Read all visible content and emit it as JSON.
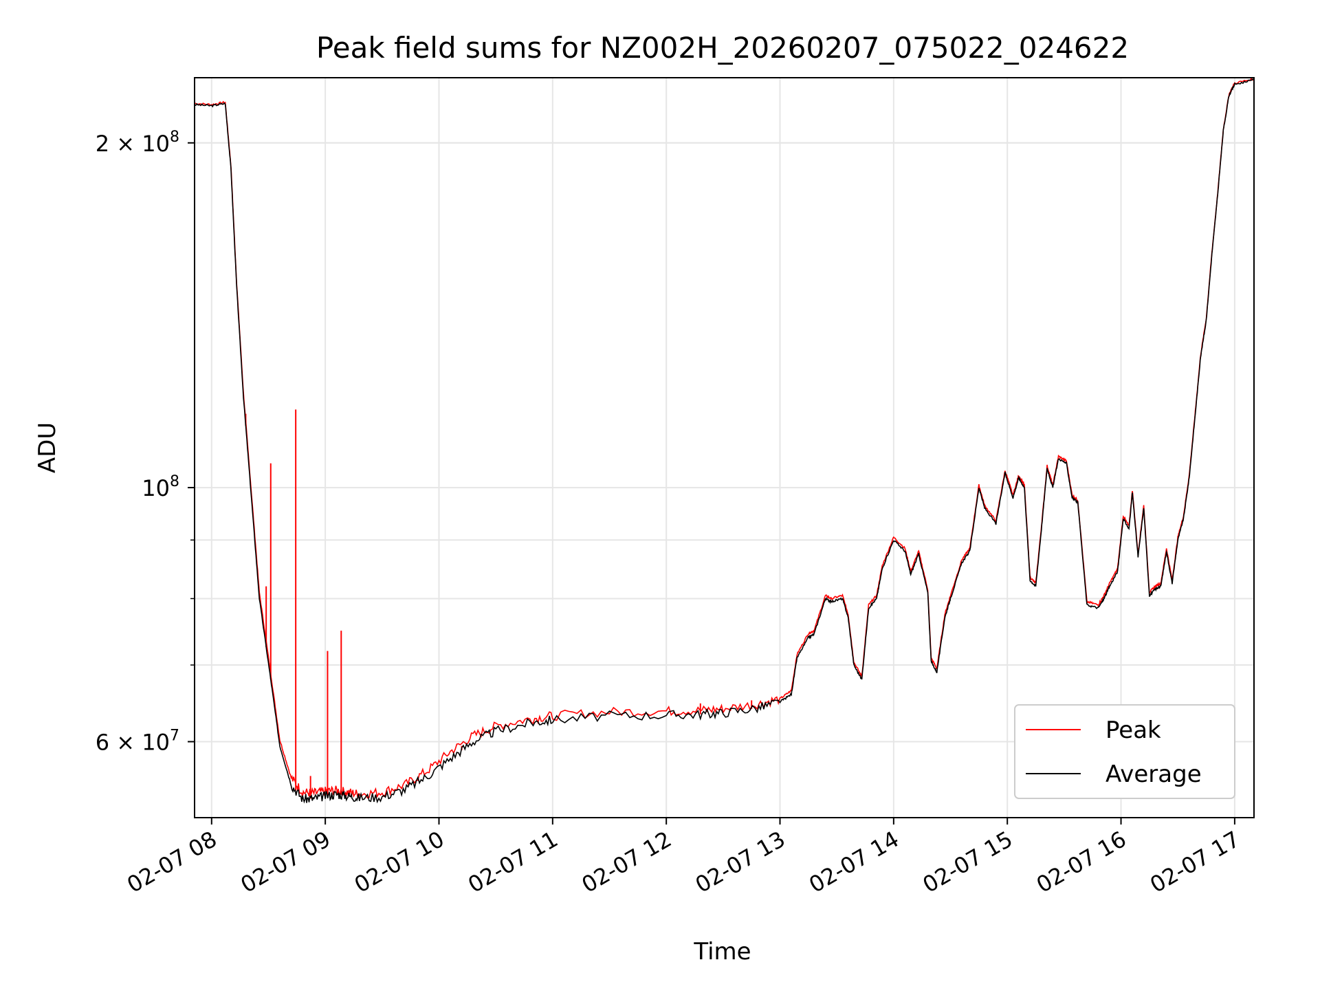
{
  "chart_data": {
    "type": "line",
    "title": "Peak field sums for NZ002H_20260207_075022_024622",
    "xlabel": "Time",
    "ylabel": "ADU",
    "yscale": "log",
    "ylim": [
      51500000,
      228000000
    ],
    "xlim_hours": [
      7.85,
      17.17
    ],
    "grid": true,
    "legend_position": "lower-right",
    "x_tick_labels": [
      "02-07 08",
      "02-07 09",
      "02-07 10",
      "02-07 11",
      "02-07 12",
      "02-07 13",
      "02-07 14",
      "02-07 15",
      "02-07 16",
      "02-07 17"
    ],
    "x_tick_hours": [
      8,
      9,
      10,
      11,
      12,
      13,
      14,
      15,
      16,
      17
    ],
    "y_major_ticks": [
      {
        "value": 200000000,
        "mantissa": "2",
        "exponent": "8"
      },
      {
        "value": 100000000,
        "mantissa": "",
        "exponent": "8"
      },
      {
        "value": 60000000,
        "mantissa": "6",
        "exponent": "7"
      }
    ],
    "y_minor_values": [
      70000000,
      80000000,
      90000000,
      200000000
    ],
    "colors": {
      "peak": "#ff0000",
      "average": "#000000",
      "grid": "#e6e6e6"
    },
    "series": [
      {
        "name": "Average",
        "color": "#000000",
        "x_hours": [
          7.85,
          8.0,
          8.12,
          8.17,
          8.22,
          8.28,
          8.35,
          8.42,
          8.52,
          8.6,
          8.7,
          8.8,
          8.9,
          9.0,
          9.1,
          9.2,
          9.3,
          9.5,
          9.7,
          9.9,
          10.1,
          10.3,
          10.5,
          10.8,
          11.0,
          11.5,
          12.0,
          12.3,
          12.5,
          12.8,
          13.0,
          13.1,
          13.15,
          13.25,
          13.3,
          13.4,
          13.45,
          13.55,
          13.6,
          13.65,
          13.72,
          13.78,
          13.85,
          13.9,
          14.0,
          14.1,
          14.15,
          14.22,
          14.3,
          14.33,
          14.38,
          14.45,
          14.5,
          14.6,
          14.67,
          14.75,
          14.8,
          14.9,
          14.98,
          15.05,
          15.1,
          15.15,
          15.2,
          15.25,
          15.3,
          15.35,
          15.4,
          15.45,
          15.52,
          15.57,
          15.62,
          15.7,
          15.8,
          15.85,
          15.9,
          15.97,
          16.02,
          16.07,
          16.1,
          16.15,
          16.2,
          16.25,
          16.3,
          16.35,
          16.4,
          16.45,
          16.5,
          16.55,
          16.6,
          16.65,
          16.7,
          16.75,
          16.8,
          16.85,
          16.9,
          16.95,
          17.0,
          17.17
        ],
        "values": [
          216000000,
          215500000,
          216500000,
          190000000,
          150000000,
          120000000,
          98000000,
          80000000,
          68000000,
          59500000,
          55000000,
          53500000,
          53500000,
          53800000,
          54000000,
          53800000,
          53600000,
          53700000,
          54500000,
          56000000,
          58000000,
          60000000,
          61300000,
          62300000,
          62700000,
          63200000,
          63300000,
          63400000,
          63600000,
          64200000,
          65000000,
          66000000,
          71000000,
          74000000,
          74500000,
          80000000,
          79500000,
          80000000,
          77000000,
          70000000,
          68000000,
          78500000,
          80000000,
          85000000,
          90000000,
          88000000,
          84000000,
          87500000,
          81000000,
          70500000,
          69000000,
          77000000,
          80000000,
          86000000,
          88000000,
          100000000,
          96000000,
          93000000,
          103000000,
          98000000,
          102000000,
          100000000,
          83000000,
          82000000,
          92000000,
          104000000,
          100000000,
          106000000,
          105000000,
          98000000,
          97000000,
          79000000,
          78500000,
          80000000,
          82000000,
          84500000,
          94000000,
          92000000,
          99000000,
          87000000,
          96000000,
          80500000,
          81500000,
          82000000,
          88000000,
          82500000,
          90000000,
          94000000,
          102000000,
          115000000,
          130000000,
          140000000,
          160000000,
          180000000,
          205000000,
          220000000,
          225000000,
          227000000
        ]
      },
      {
        "name": "Peak",
        "color": "#ff0000",
        "x_hours": [
          7.85,
          8.0,
          8.12,
          8.17,
          8.22,
          8.28,
          8.35,
          8.42,
          8.52,
          8.6,
          8.7,
          8.8,
          8.9,
          9.0,
          9.1,
          9.2,
          9.3,
          9.5,
          9.7,
          9.9,
          10.1,
          10.3,
          10.5,
          10.8,
          11.0,
          11.5,
          12.0,
          12.3,
          12.5,
          12.8,
          13.0,
          13.1,
          13.15,
          13.25,
          13.3,
          13.4,
          13.45,
          13.55,
          13.6,
          13.65,
          13.72,
          13.78,
          13.85,
          13.9,
          14.0,
          14.1,
          14.15,
          14.22,
          14.3,
          14.33,
          14.38,
          14.45,
          14.5,
          14.6,
          14.67,
          14.75,
          14.8,
          14.9,
          14.98,
          15.05,
          15.1,
          15.15,
          15.2,
          15.25,
          15.3,
          15.35,
          15.4,
          15.45,
          15.52,
          15.57,
          15.62,
          15.7,
          15.8,
          15.85,
          15.9,
          15.97,
          16.02,
          16.07,
          16.1,
          16.15,
          16.2,
          16.25,
          16.3,
          16.35,
          16.4,
          16.45,
          16.5,
          16.55,
          16.6,
          16.65,
          16.7,
          16.75,
          16.8,
          16.85,
          16.9,
          16.95,
          17.0,
          17.17
        ],
        "values": [
          216500000,
          216000000,
          217000000,
          191000000,
          151000000,
          121000000,
          99000000,
          81000000,
          68800000,
          60200000,
          55800000,
          54200000,
          54100000,
          54300000,
          54400000,
          54200000,
          54000000,
          54200000,
          55000000,
          56600000,
          58800000,
          60700000,
          61900000,
          62800000,
          63200000,
          63700000,
          63800000,
          63900000,
          64100000,
          64700000,
          65400000,
          66500000,
          71500000,
          74600000,
          75000000,
          80500000,
          80000000,
          80500000,
          77500000,
          70400000,
          68400000,
          79000000,
          80500000,
          85500000,
          90500000,
          88500000,
          84500000,
          88000000,
          81500000,
          71000000,
          69500000,
          77500000,
          80500000,
          86500000,
          88500000,
          100500000,
          96500000,
          93500000,
          103500000,
          98500000,
          102500000,
          100500000,
          83500000,
          82500000,
          92500000,
          104500000,
          100500000,
          106500000,
          105500000,
          98500000,
          97500000,
          79500000,
          79000000,
          80500000,
          82500000,
          85000000,
          94500000,
          92500000,
          99500000,
          87500000,
          96500000,
          81000000,
          82000000,
          82500000,
          88500000,
          83000000,
          90500000,
          94500000,
          102500000,
          115500000,
          130500000,
          140500000,
          160500000,
          180500000,
          205500000,
          220500000,
          225500000,
          227500000
        ],
        "spikes": [
          {
            "x_hour": 8.3,
            "value": 116000000
          },
          {
            "x_hour": 8.48,
            "value": 82000000
          },
          {
            "x_hour": 8.52,
            "value": 105000000
          },
          {
            "x_hour": 8.74,
            "value": 117000000
          },
          {
            "x_hour": 8.87,
            "value": 56000000
          },
          {
            "x_hour": 9.02,
            "value": 72000000
          },
          {
            "x_hour": 9.14,
            "value": 75000000
          },
          {
            "x_hour": 10.2,
            "value": 59500000
          },
          {
            "x_hour": 12.3,
            "value": 64800000
          },
          {
            "x_hour": 12.75,
            "value": 65200000
          }
        ]
      }
    ],
    "legend": [
      {
        "label": "Peak",
        "color": "#ff0000"
      },
      {
        "label": "Average",
        "color": "#000000"
      }
    ]
  }
}
